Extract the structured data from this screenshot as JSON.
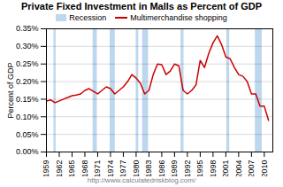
{
  "chart_data": {
    "type": "line",
    "title": "Private Fixed Investment in Malls as Percent of GDP",
    "ylabel": "Percent of GDP",
    "annotation": "http://www.calculatedriskblog.com/",
    "legend": "top",
    "grid": true,
    "x": [
      1959,
      1960,
      1961,
      1962,
      1963,
      1964,
      1965,
      1966,
      1967,
      1968,
      1969,
      1970,
      1971,
      1972,
      1973,
      1974,
      1975,
      1976,
      1977,
      1978,
      1979,
      1980,
      1981,
      1982,
      1983,
      1984,
      1985,
      1986,
      1987,
      1988,
      1989,
      1990,
      1991,
      1992,
      1993,
      1994,
      1995,
      1996,
      1997,
      1998,
      1999,
      2000,
      2001,
      2002,
      2003,
      2004,
      2005,
      2006,
      2007,
      2008,
      2009,
      2010,
      2011
    ],
    "series": [
      {
        "name": "Multimerchandise shopping",
        "color": "#CC0000",
        "values": [
          0.00145,
          0.00148,
          0.0014,
          0.00145,
          0.0015,
          0.00155,
          0.0016,
          0.00162,
          0.00165,
          0.00175,
          0.0018,
          0.00172,
          0.00165,
          0.00175,
          0.00185,
          0.0018,
          0.00165,
          0.00175,
          0.00185,
          0.002,
          0.0022,
          0.0021,
          0.00195,
          0.00165,
          0.00175,
          0.0022,
          0.0025,
          0.00248,
          0.0022,
          0.0023,
          0.0025,
          0.00245,
          0.00175,
          0.00165,
          0.00175,
          0.0019,
          0.0026,
          0.0024,
          0.0028,
          0.0031,
          0.0033,
          0.00305,
          0.0027,
          0.00265,
          0.0024,
          0.0022,
          0.00215,
          0.002,
          0.00165,
          0.00165,
          0.0013,
          0.0013,
          0.0009
        ]
      }
    ],
    "bands": {
      "name": "Recession",
      "color": "#BDD7EE",
      "ranges": [
        [
          1960.75,
          1961.25
        ],
        [
          1969.9,
          1970.9
        ],
        [
          1973.9,
          1975.1
        ],
        [
          1980.0,
          1980.6
        ],
        [
          1981.5,
          1982.9
        ],
        [
          1990.5,
          1991.2
        ],
        [
          2001.2,
          2001.9
        ],
        [
          2007.9,
          2009.5
        ]
      ]
    },
    "xlim": [
      1959,
      2012
    ],
    "xticks": [
      1959,
      1962,
      1965,
      1968,
      1971,
      1974,
      1977,
      1980,
      1983,
      1986,
      1989,
      1992,
      1995,
      1998,
      2001,
      2004,
      2007,
      2010
    ],
    "ylim": [
      0.0,
      0.0035
    ],
    "yticks": [
      {
        "value": 0.0,
        "label": "0.00%"
      },
      {
        "value": 0.0005,
        "label": "0.05%"
      },
      {
        "value": 0.001,
        "label": "0.10%"
      },
      {
        "value": 0.0015,
        "label": "0.15%"
      },
      {
        "value": 0.002,
        "label": "0.20%"
      },
      {
        "value": 0.0025,
        "label": "0.25%"
      },
      {
        "value": 0.003,
        "label": "0.30%"
      },
      {
        "value": 0.0035,
        "label": "0.35%"
      }
    ]
  }
}
